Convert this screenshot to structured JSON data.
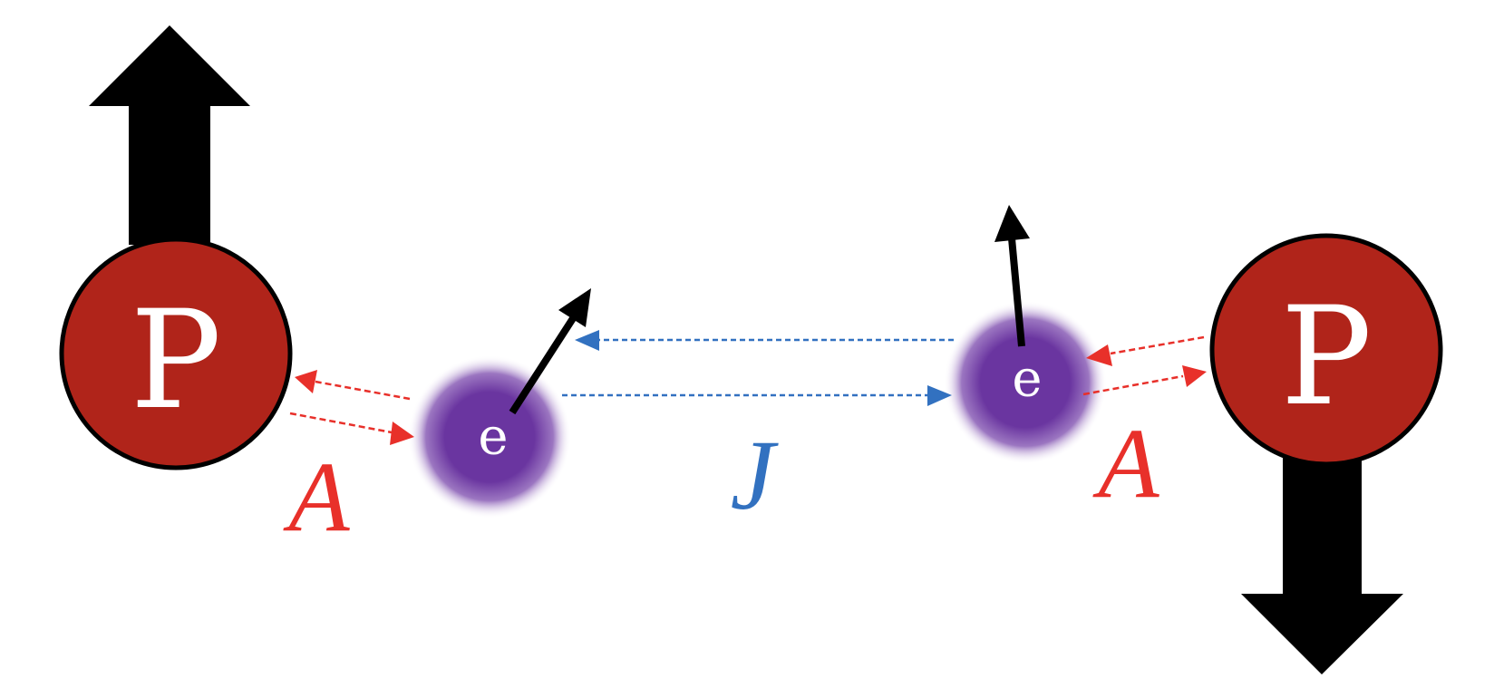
{
  "nuclei": [
    {
      "label": "P",
      "spin": "up"
    },
    {
      "label": "P",
      "spin": "down"
    }
  ],
  "electrons": [
    {
      "label": "e"
    },
    {
      "label": "e"
    }
  ],
  "couplings": {
    "hyperfine_left": "A",
    "hyperfine_right": "A",
    "exchange": "J"
  },
  "colors": {
    "nucleus_fill": "#B0241A",
    "nucleus_stroke": "#000000",
    "electron_core": "#6A35A0",
    "spin_arrow": "#000000",
    "hyperfine": "#E8302A",
    "exchange": "#3271C0",
    "label_text": "#FFFFFF"
  }
}
